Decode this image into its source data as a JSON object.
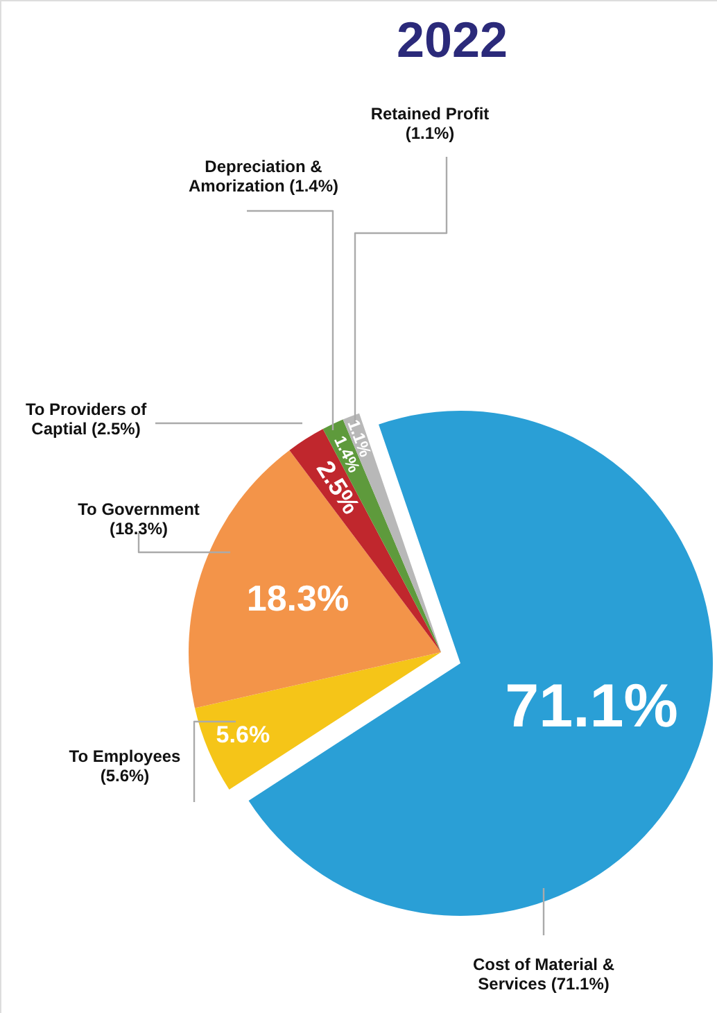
{
  "chart_data": {
    "type": "pie",
    "title": "2022",
    "categories": [
      "Cost of Material & Services (71.1%)",
      "To Employees (5.6%)",
      "To Government (18.3%)",
      "To Providers of Captial (2.5%)",
      "Depreciation & Amorization (1.4%)",
      "Retained Profit (1.1%)"
    ],
    "values": [
      71.1,
      5.6,
      18.3,
      2.5,
      1.4,
      1.1
    ],
    "colors": [
      "#2a9fd6",
      "#f5c518",
      "#f39449",
      "#c0272d",
      "#5e9a3c",
      "#b8b8b8"
    ],
    "value_labels": [
      "71.1%",
      "5.6%",
      "18.3%",
      "2.5%",
      "1.4%",
      "1.1%"
    ]
  }
}
